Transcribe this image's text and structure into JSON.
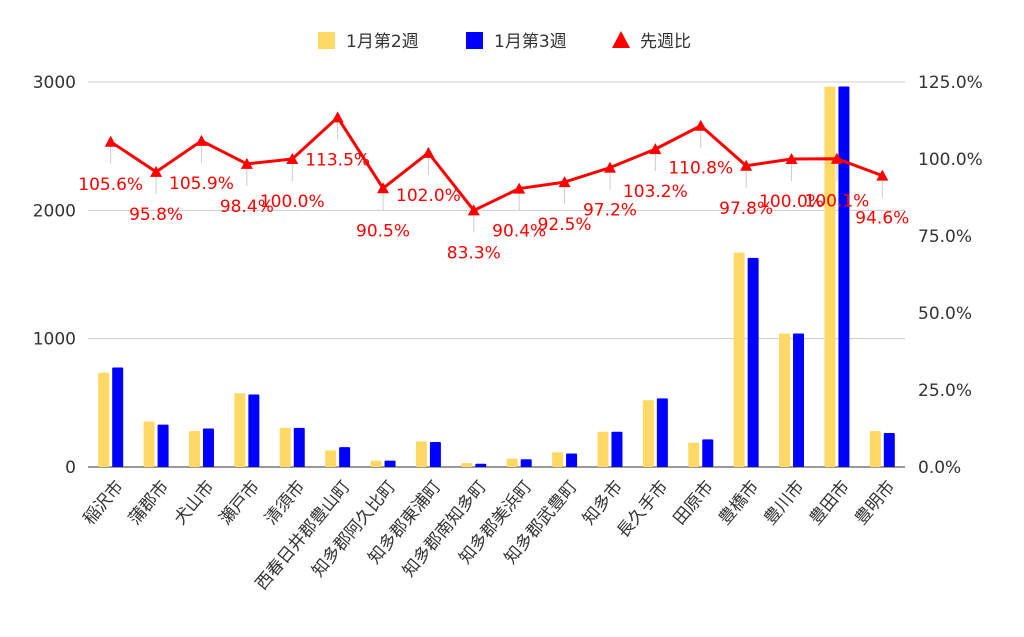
{
  "chart_data": {
    "type": "bar",
    "categories": [
      "稲沢市",
      "蒲郡市",
      "犬山市",
      "瀬戸市",
      "清須市",
      "西春日井郡豊山町",
      "知多郡阿久比町",
      "知多郡東浦町",
      "知多郡南知多町",
      "知多郡美浜町",
      "知多郡武豊町",
      "知多市",
      "長久手市",
      "田原市",
      "豊橋市",
      "豊川市",
      "豊田市",
      "豊明市"
    ],
    "series": [
      {
        "name": "1月第2週",
        "kind": "bar",
        "axis": "left",
        "color": "#FFD966",
        "values": [
          735,
          355,
          280,
          575,
          305,
          130,
          50,
          200,
          30,
          65,
          115,
          275,
          520,
          190,
          1670,
          1040,
          2965,
          280
        ]
      },
      {
        "name": "1月第3週",
        "kind": "bar",
        "axis": "left",
        "color": "#0000FF",
        "values": [
          775,
          330,
          300,
          565,
          305,
          155,
          50,
          195,
          25,
          60,
          105,
          275,
          535,
          215,
          1630,
          1040,
          2965,
          265
        ]
      },
      {
        "name": "先週比",
        "kind": "line",
        "axis": "right",
        "color": "#FF0000",
        "values": [
          105.6,
          95.8,
          105.9,
          98.4,
          100.0,
          113.5,
          90.5,
          102.0,
          83.3,
          90.4,
          92.5,
          97.2,
          103.2,
          110.8,
          97.8,
          100.0,
          100.1,
          94.6
        ],
        "labels": [
          "105.6%",
          "95.8%",
          "105.9%",
          "98.4%",
          "100.0%",
          "113.5%",
          "90.5%",
          "102.0%",
          "83.3%",
          "90.4%",
          "92.5%",
          "97.2%",
          "103.2%",
          "110.8%",
          "97.8%",
          "100.0%",
          "100.1%",
          "94.6%"
        ]
      }
    ],
    "left_axis": {
      "min": 0,
      "max": 3000,
      "ticks": [
        "0",
        "1000",
        "2000",
        "3000"
      ],
      "tick_values": [
        0,
        1000,
        2000,
        3000
      ]
    },
    "right_axis": {
      "min": 0,
      "max": 125,
      "ticks": [
        "0.0%",
        "25.0%",
        "50.0%",
        "75.0%",
        "100.0%",
        "125.0%"
      ],
      "tick_values": [
        0,
        25,
        50,
        75,
        100,
        125
      ]
    },
    "legend_position": "top",
    "grid": true
  }
}
